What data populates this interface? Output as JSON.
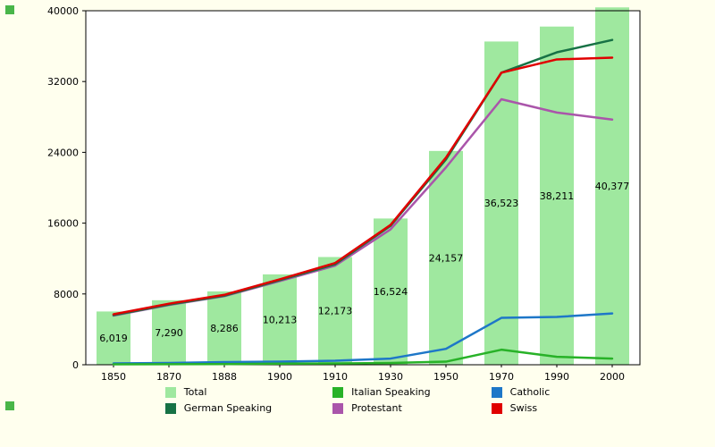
{
  "page": {
    "background_color": "#FFFFEE",
    "plot_background_color": "#FFFFFF",
    "marker_color": "#49B649",
    "axis_color": "#000000",
    "text_color": "#000000"
  },
  "chart_data": {
    "type": "bar+line",
    "title": "",
    "xlabel": "",
    "ylabel": "",
    "grid": false,
    "legend_position": "bottom",
    "categories": [
      "1850",
      "1870",
      "1888",
      "1900",
      "1910",
      "1930",
      "1950",
      "1970",
      "1990",
      "2000"
    ],
    "ylim": [
      0,
      40000
    ],
    "yticks": [
      0,
      8000,
      16000,
      24000,
      32000,
      40000
    ],
    "ytick_labels": [
      "0",
      "8000",
      "16000",
      "24000",
      "32000",
      "40000"
    ],
    "bar_series": {
      "name": "Total",
      "color": "#9FE89F",
      "values": [
        6019,
        7290,
        8286,
        10213,
        12173,
        16524,
        24157,
        36523,
        38211,
        40377
      ],
      "value_labels": [
        "6,019",
        "7,290",
        "8,286",
        "10,213",
        "12,173",
        "16,524",
        "24,157",
        "36,523",
        "38,211",
        "40,377"
      ]
    },
    "line_series": [
      {
        "name": "Protestant",
        "color": "#AA55AA",
        "values": [
          5550,
          6750,
          7750,
          9450,
          11200,
          15300,
          22300,
          30000,
          28500,
          27700
        ]
      },
      {
        "name": "German Speaking",
        "color": "#177245",
        "values": [
          5600,
          6800,
          7800,
          9550,
          11350,
          15700,
          23200,
          33000,
          35300,
          36700
        ]
      },
      {
        "name": "Swiss",
        "color": "#E00000",
        "values": [
          5700,
          6900,
          7900,
          9650,
          11500,
          15800,
          23400,
          33000,
          34500,
          34700
        ]
      },
      {
        "name": "Catholic",
        "color": "#1E77C8",
        "values": [
          150,
          200,
          300,
          350,
          450,
          700,
          1800,
          5300,
          5400,
          5800
        ]
      },
      {
        "name": "Italian Speaking",
        "color": "#28B228",
        "values": [
          50,
          60,
          80,
          120,
          150,
          200,
          350,
          1700,
          900,
          700
        ]
      }
    ],
    "legend": [
      {
        "label": "Total",
        "color": "#9FE89F"
      },
      {
        "label": "German Speaking",
        "color": "#177245"
      },
      {
        "label": "Italian Speaking",
        "color": "#28B228"
      },
      {
        "label": "Protestant",
        "color": "#AA55AA"
      },
      {
        "label": "Catholic",
        "color": "#1E77C8"
      },
      {
        "label": "Swiss",
        "color": "#E00000"
      }
    ]
  }
}
